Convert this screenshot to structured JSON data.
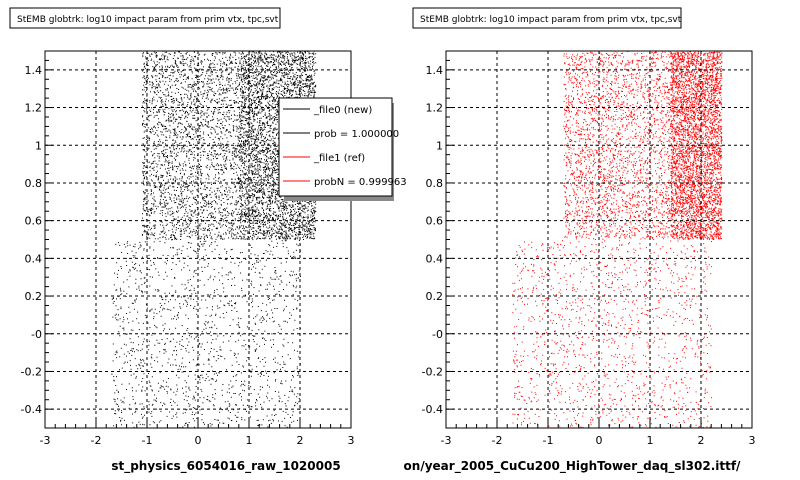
{
  "chart_data": [
    {
      "type": "scatter",
      "title": "StEMB globtrk: log10 impact param from prim vtx, tpc,svt",
      "xlim": [
        -3,
        3
      ],
      "ylim": [
        -0.5,
        1.5
      ],
      "x_ticks": [
        "-3",
        "-2",
        "-1",
        "0",
        "1",
        "2",
        "3"
      ],
      "y_ticks": [
        "-0.4",
        "-0.2",
        "-0",
        "0.2",
        "0.4",
        "0.6",
        "0.8",
        "1",
        "1.2",
        "1.4"
      ],
      "grid": true,
      "file_label": "st_physics_6054016_raw_1020005",
      "series": [
        {
          "name": "_file0 (new)",
          "color": "#000000",
          "regions": [
            {
              "x": [
                0.8,
                2.3
              ],
              "y": [
                0.5,
                1.5
              ],
              "density": "high"
            },
            {
              "x": [
                -1.1,
                0.8
              ],
              "y": [
                0.5,
                1.5
              ],
              "density": "medium"
            },
            {
              "x": [
                -1.7,
                2.0
              ],
              "y": [
                -0.5,
                0.5
              ],
              "density": "low"
            }
          ]
        }
      ],
      "legend": {
        "placement": "top-right",
        "entries": [
          {
            "label": "_file0 (new)",
            "color": "#000000"
          },
          {
            "label": "prob = 1.000000",
            "color": "#000000"
          },
          {
            "label": "_file1 (ref)",
            "color": "#ff0000"
          },
          {
            "label": "probN = 0.999963",
            "color": "#ff0000"
          }
        ]
      }
    },
    {
      "type": "scatter",
      "title": "StEMB globtrk: log10 impact param from prim vtx, tpc,svt",
      "xlim": [
        -3,
        3
      ],
      "ylim": [
        -0.5,
        1.5
      ],
      "x_ticks": [
        "-3",
        "-2",
        "-1",
        "0",
        "1",
        "2",
        "3"
      ],
      "y_ticks": [
        "-0.4",
        "-0.2",
        "-0",
        "0.2",
        "0.4",
        "0.6",
        "0.8",
        "1",
        "1.2",
        "1.4"
      ],
      "grid": true,
      "file_label": "on/year_2005_CuCu200_HighTower_daq_sl302.ittf/",
      "series": [
        {
          "name": "_file1 (ref)",
          "color": "#ff0000",
          "regions": [
            {
              "x": [
                1.4,
                2.4
              ],
              "y": [
                0.5,
                1.5
              ],
              "density": "high"
            },
            {
              "x": [
                -0.7,
                1.4
              ],
              "y": [
                0.5,
                1.5
              ],
              "density": "medium"
            },
            {
              "x": [
                -1.7,
                2.2
              ],
              "y": [
                -0.5,
                0.5
              ],
              "density": "low"
            }
          ]
        }
      ]
    }
  ]
}
